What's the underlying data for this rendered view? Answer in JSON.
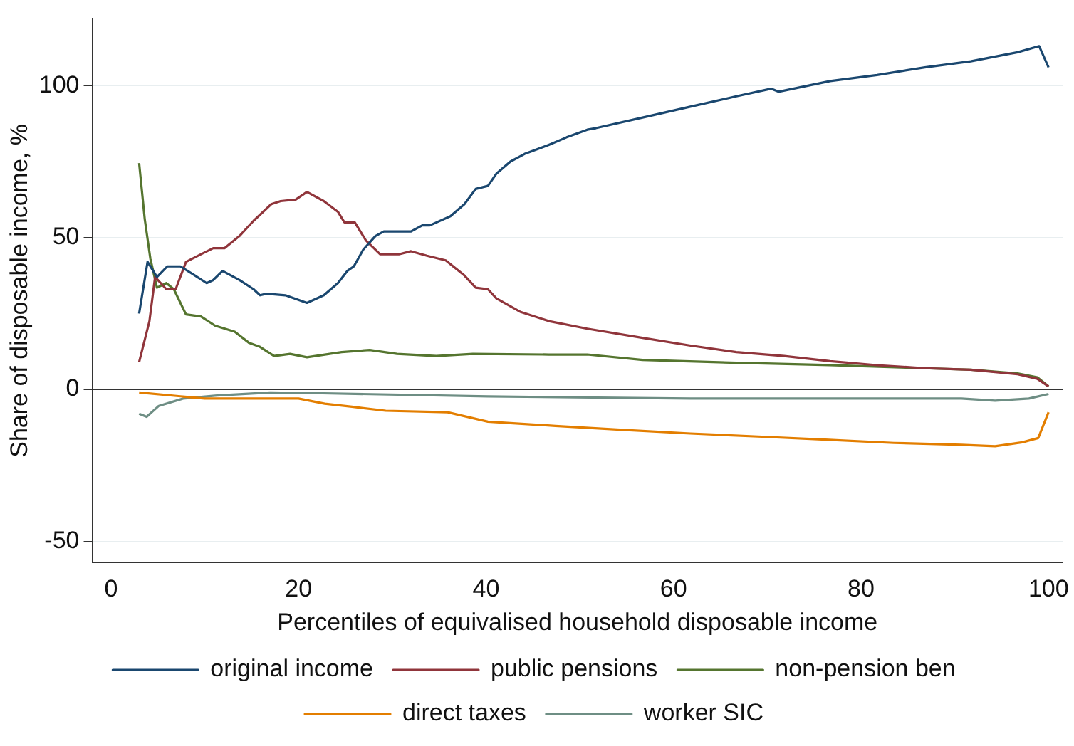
{
  "chart_data": {
    "type": "line",
    "xlabel": "Percentiles of equivalised household disposable income",
    "ylabel": "Share of disposable income, %",
    "xlim": [
      -2,
      101.5
    ],
    "ylim": [
      -57,
      122
    ],
    "xticks": [
      0,
      20,
      40,
      60,
      80,
      100
    ],
    "yticks": [
      -50,
      0,
      50,
      100
    ],
    "grid": "y",
    "legend": "bottom",
    "marker": "none",
    "line_style": "solid",
    "ref_lines": [
      {
        "axis": "y",
        "value": 0,
        "color": "#333333"
      }
    ],
    "series": [
      {
        "name": "original income",
        "color": "#1a476f",
        "x": [
          3,
          3.9,
          4.9,
          6,
          7.4,
          8.7,
          10.2,
          10.9,
          11.9,
          13.7,
          15.2,
          15.9,
          16.6,
          18.6,
          20.9,
          22.7,
          24.2,
          25.2,
          25.9,
          26.9,
          28.2,
          29.1,
          32,
          33.2,
          34,
          36.2,
          37.7,
          38.9,
          40.2,
          41.1,
          42.6,
          44.1,
          46.7,
          48.6,
          50.8,
          51.7,
          56.7,
          61.7,
          66.7,
          70.4,
          71.2,
          76.7,
          81.7,
          86.8,
          91.7,
          96.7,
          99,
          100
        ],
        "values": [
          25,
          42,
          37,
          40.5,
          40.5,
          38,
          35,
          36,
          39,
          36,
          33,
          31,
          31.5,
          31,
          28.5,
          31,
          35,
          39,
          40.5,
          46,
          50.5,
          52,
          52,
          54,
          54,
          57,
          61,
          66,
          67,
          71,
          75,
          77.5,
          80.5,
          83,
          85.5,
          86,
          89.5,
          93,
          96.5,
          99,
          98,
          101.5,
          103.5,
          106,
          108,
          111,
          113,
          106
        ]
      },
      {
        "name": "public pensions",
        "color": "#90353b",
        "x": [
          3,
          4.1,
          4.7,
          5.9,
          6.9,
          8,
          9.6,
          10.9,
          12.1,
          13.7,
          15.2,
          17.1,
          18.1,
          19.7,
          20.9,
          22.7,
          24.2,
          24.9,
          26,
          27.2,
          28.7,
          30.7,
          32,
          33.7,
          35.7,
          37.7,
          38.9,
          40.2,
          41.1,
          43.7,
          46.7,
          50.8,
          56.7,
          61.7,
          66.7,
          71.8,
          76.7,
          81.7,
          86.8,
          91.7,
          96.7,
          98.8,
          100
        ],
        "values": [
          9,
          22.5,
          37,
          33,
          33,
          42,
          44.5,
          46.5,
          46.5,
          50.5,
          55.5,
          61,
          62,
          62.5,
          65,
          62,
          58.5,
          55,
          55,
          49,
          44.5,
          44.5,
          45.5,
          44,
          42.5,
          37.5,
          33.5,
          33,
          30,
          25.5,
          22.5,
          20,
          17,
          14.5,
          12.3,
          11,
          9.3,
          8,
          7,
          6.5,
          5,
          3.5,
          1
        ]
      },
      {
        "name": "non-pension ben",
        "color": "#55752f",
        "x": [
          3,
          3.6,
          4.2,
          4.9,
          5.9,
          6.7,
          8,
          9.6,
          11.1,
          13.2,
          14.7,
          15.9,
          17.4,
          19.1,
          20.9,
          24.6,
          27.6,
          30.5,
          34.7,
          38.6,
          46.7,
          50.8,
          56.7,
          66.7,
          76.7,
          86.8,
          91.7,
          96.7,
          98.8,
          100
        ],
        "values": [
          74.5,
          56,
          43,
          33.5,
          35,
          33,
          24.7,
          24,
          21,
          19,
          15.4,
          14,
          11,
          11.7,
          10.6,
          12.3,
          13,
          11.7,
          11,
          11.7,
          11.5,
          11.5,
          9.7,
          8.8,
          8,
          7,
          6.5,
          5.3,
          4,
          1
        ]
      },
      {
        "name": "direct taxes",
        "color": "#e37e00",
        "x": [
          3,
          10,
          20,
          22.8,
          25.7,
          29.3,
          35.9,
          40.2,
          47.4,
          54.6,
          61.8,
          69,
          76.2,
          83.5,
          90.7,
          94.3,
          97.2,
          98.9,
          100
        ],
        "values": [
          -1,
          -3,
          -3,
          -4.7,
          -5.7,
          -7,
          -7.5,
          -10.6,
          -12,
          -13.3,
          -14.5,
          -15.5,
          -16.5,
          -17.6,
          -18.2,
          -18.7,
          -17.4,
          -16,
          -7.5
        ]
      },
      {
        "name": "worker SIC",
        "color": "#6e8e84",
        "x": [
          3,
          3.8,
          5.1,
          7.7,
          11.3,
          17,
          21.7,
          40.2,
          61.8,
          90.7,
          94.3,
          97.9,
          100
        ],
        "values": [
          -8,
          -9,
          -5.4,
          -3,
          -2,
          -1,
          -1.2,
          -2.3,
          -3,
          -3,
          -3.7,
          -3,
          -1.5
        ]
      }
    ]
  }
}
